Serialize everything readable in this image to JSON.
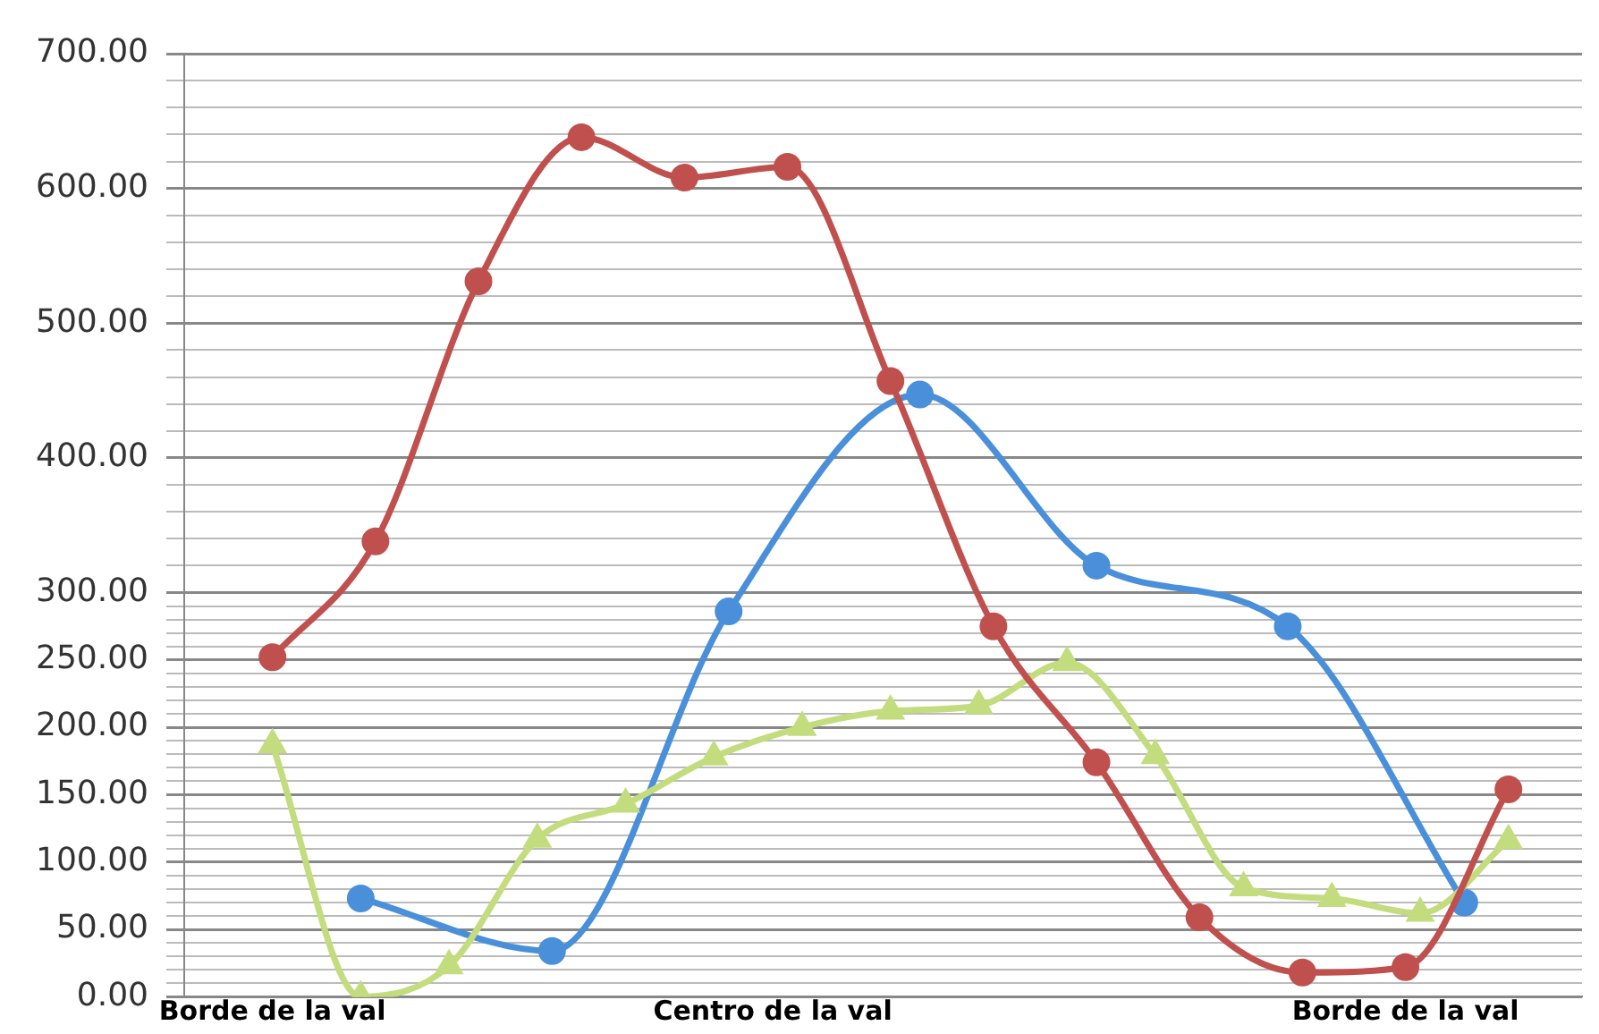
{
  "chart_data": {
    "type": "line",
    "categories": [
      null,
      null,
      null,
      null,
      null,
      null,
      "Borde de la val",
      null,
      null,
      null,
      null,
      null,
      null,
      null,
      null,
      null,
      null,
      null,
      null,
      null,
      null,
      null,
      null,
      null,
      null,
      null,
      null,
      null,
      null,
      null,
      null,
      null,
      null,
      null,
      null,
      null,
      null,
      null,
      null,
      null,
      "Centro de la val",
      null,
      null,
      null,
      null,
      null,
      null,
      null,
      null,
      null,
      null,
      null,
      null,
      null,
      null,
      null,
      null,
      null,
      null,
      null,
      null,
      null,
      null,
      null,
      null,
      null,
      null,
      null,
      null,
      null,
      null,
      null,
      null,
      null,
      null,
      null,
      null,
      null,
      null,
      null,
      null,
      null,
      null,
      "Borde de la val",
      null,
      null,
      null,
      null,
      null,
      null,
      null,
      null,
      null,
      null,
      null,
      null
    ],
    "ylim": [
      0,
      700
    ],
    "yticks": [
      {
        "value": 0,
        "label": "0.00"
      },
      {
        "value": 10,
        "label": null
      },
      {
        "value": 20,
        "label": null
      },
      {
        "value": 30,
        "label": null
      },
      {
        "value": 40,
        "label": null
      },
      {
        "value": 50,
        "label": "50.00"
      },
      {
        "value": 60,
        "label": null
      },
      {
        "value": 70,
        "label": null
      },
      {
        "value": 80,
        "label": null
      },
      {
        "value": 90,
        "label": null
      },
      {
        "value": 100,
        "label": "100.00"
      },
      {
        "value": 110,
        "label": null
      },
      {
        "value": 120,
        "label": null
      },
      {
        "value": 130,
        "label": null
      },
      {
        "value": 140,
        "label": null
      },
      {
        "value": 150,
        "label": "150.00"
      },
      {
        "value": 160,
        "label": null
      },
      {
        "value": 170,
        "label": null
      },
      {
        "value": 180,
        "label": null
      },
      {
        "value": 190,
        "label": null
      },
      {
        "value": 200,
        "label": "200.00"
      },
      {
        "value": 210,
        "label": null
      },
      {
        "value": 220,
        "label": null
      },
      {
        "value": 230,
        "label": null
      },
      {
        "value": 240,
        "label": null
      },
      {
        "value": 250,
        "label": "250.00"
      },
      {
        "value": 260,
        "label": null
      },
      {
        "value": 270,
        "label": null
      },
      {
        "value": 280,
        "label": null
      },
      {
        "value": 290,
        "label": null
      },
      {
        "value": 300,
        "label": "300.00"
      },
      {
        "value": 320,
        "label": null
      },
      {
        "value": 340,
        "label": null
      },
      {
        "value": 360,
        "label": null
      },
      {
        "value": 380,
        "label": null
      },
      {
        "value": 400,
        "label": "400.00"
      },
      {
        "value": 420,
        "label": null
      },
      {
        "value": 440,
        "label": null
      },
      {
        "value": 460,
        "label": null
      },
      {
        "value": 480,
        "label": null
      },
      {
        "value": 500,
        "label": "500.00"
      },
      {
        "value": 520,
        "label": null
      },
      {
        "value": 540,
        "label": null
      },
      {
        "value": 560,
        "label": null
      },
      {
        "value": 580,
        "label": null
      },
      {
        "value": 600,
        "label": "600.00"
      },
      {
        "value": 620,
        "label": null
      },
      {
        "value": 640,
        "label": null
      },
      {
        "value": 660,
        "label": null
      },
      {
        "value": 680,
        "label": null
      },
      {
        "value": 700,
        "label": "700.00"
      }
    ],
    "grid": "y",
    "legend": false,
    "line_style": "solid",
    "series": [
      {
        "color": "#c0504d",
        "marker": "circle",
        "values": [
          null,
          null,
          null,
          null,
          null,
          null,
          252,
          null,
          null,
          null,
          null,
          null,
          null,
          338,
          null,
          null,
          null,
          null,
          null,
          null,
          531,
          null,
          null,
          null,
          null,
          null,
          null,
          638,
          null,
          null,
          null,
          null,
          null,
          null,
          608,
          null,
          null,
          null,
          null,
          null,
          null,
          616,
          null,
          null,
          null,
          null,
          null,
          null,
          457,
          null,
          null,
          null,
          null,
          null,
          null,
          275,
          null,
          null,
          null,
          null,
          null,
          null,
          174,
          null,
          null,
          null,
          null,
          null,
          null,
          59,
          null,
          null,
          null,
          null,
          null,
          null,
          18,
          null,
          null,
          null,
          null,
          null,
          null,
          22,
          null,
          null,
          null,
          null,
          null,
          null,
          154,
          null,
          null,
          null,
          null,
          null
        ]
      },
      {
        "color": "#c3dc7e",
        "marker": "triangle",
        "values": [
          null,
          null,
          null,
          null,
          null,
          null,
          187,
          null,
          null,
          null,
          null,
          null,
          0,
          null,
          null,
          null,
          null,
          null,
          23,
          null,
          null,
          null,
          null,
          null,
          117,
          null,
          null,
          null,
          null,
          null,
          143,
          null,
          null,
          null,
          null,
          null,
          178,
          null,
          null,
          null,
          null,
          null,
          200,
          null,
          null,
          null,
          null,
          null,
          212,
          null,
          null,
          null,
          null,
          null,
          216,
          null,
          null,
          null,
          null,
          null,
          248,
          null,
          null,
          null,
          null,
          null,
          179,
          null,
          null,
          null,
          null,
          null,
          81,
          null,
          null,
          null,
          null,
          null,
          73,
          null,
          null,
          null,
          null,
          null,
          62,
          null,
          null,
          null,
          null,
          null,
          116,
          null,
          null,
          null,
          null,
          null
        ]
      },
      {
        "color": "#4a8fda",
        "marker": "circle",
        "values": [
          null,
          null,
          null,
          null,
          null,
          null,
          null,
          null,
          null,
          null,
          null,
          null,
          73,
          null,
          null,
          null,
          null,
          null,
          null,
          null,
          null,
          null,
          null,
          null,
          null,
          34,
          null,
          null,
          null,
          null,
          null,
          null,
          null,
          null,
          null,
          null,
          null,
          286,
          null,
          null,
          null,
          null,
          null,
          null,
          null,
          null,
          null,
          null,
          null,
          null,
          447,
          null,
          null,
          null,
          null,
          null,
          null,
          null,
          null,
          null,
          null,
          null,
          320,
          null,
          null,
          null,
          null,
          null,
          null,
          null,
          null,
          null,
          null,
          null,
          null,
          275,
          null,
          null,
          null,
          null,
          null,
          null,
          null,
          null,
          null,
          null,
          null,
          70,
          null,
          null,
          null,
          null,
          null,
          null,
          null,
          null
        ]
      }
    ]
  }
}
